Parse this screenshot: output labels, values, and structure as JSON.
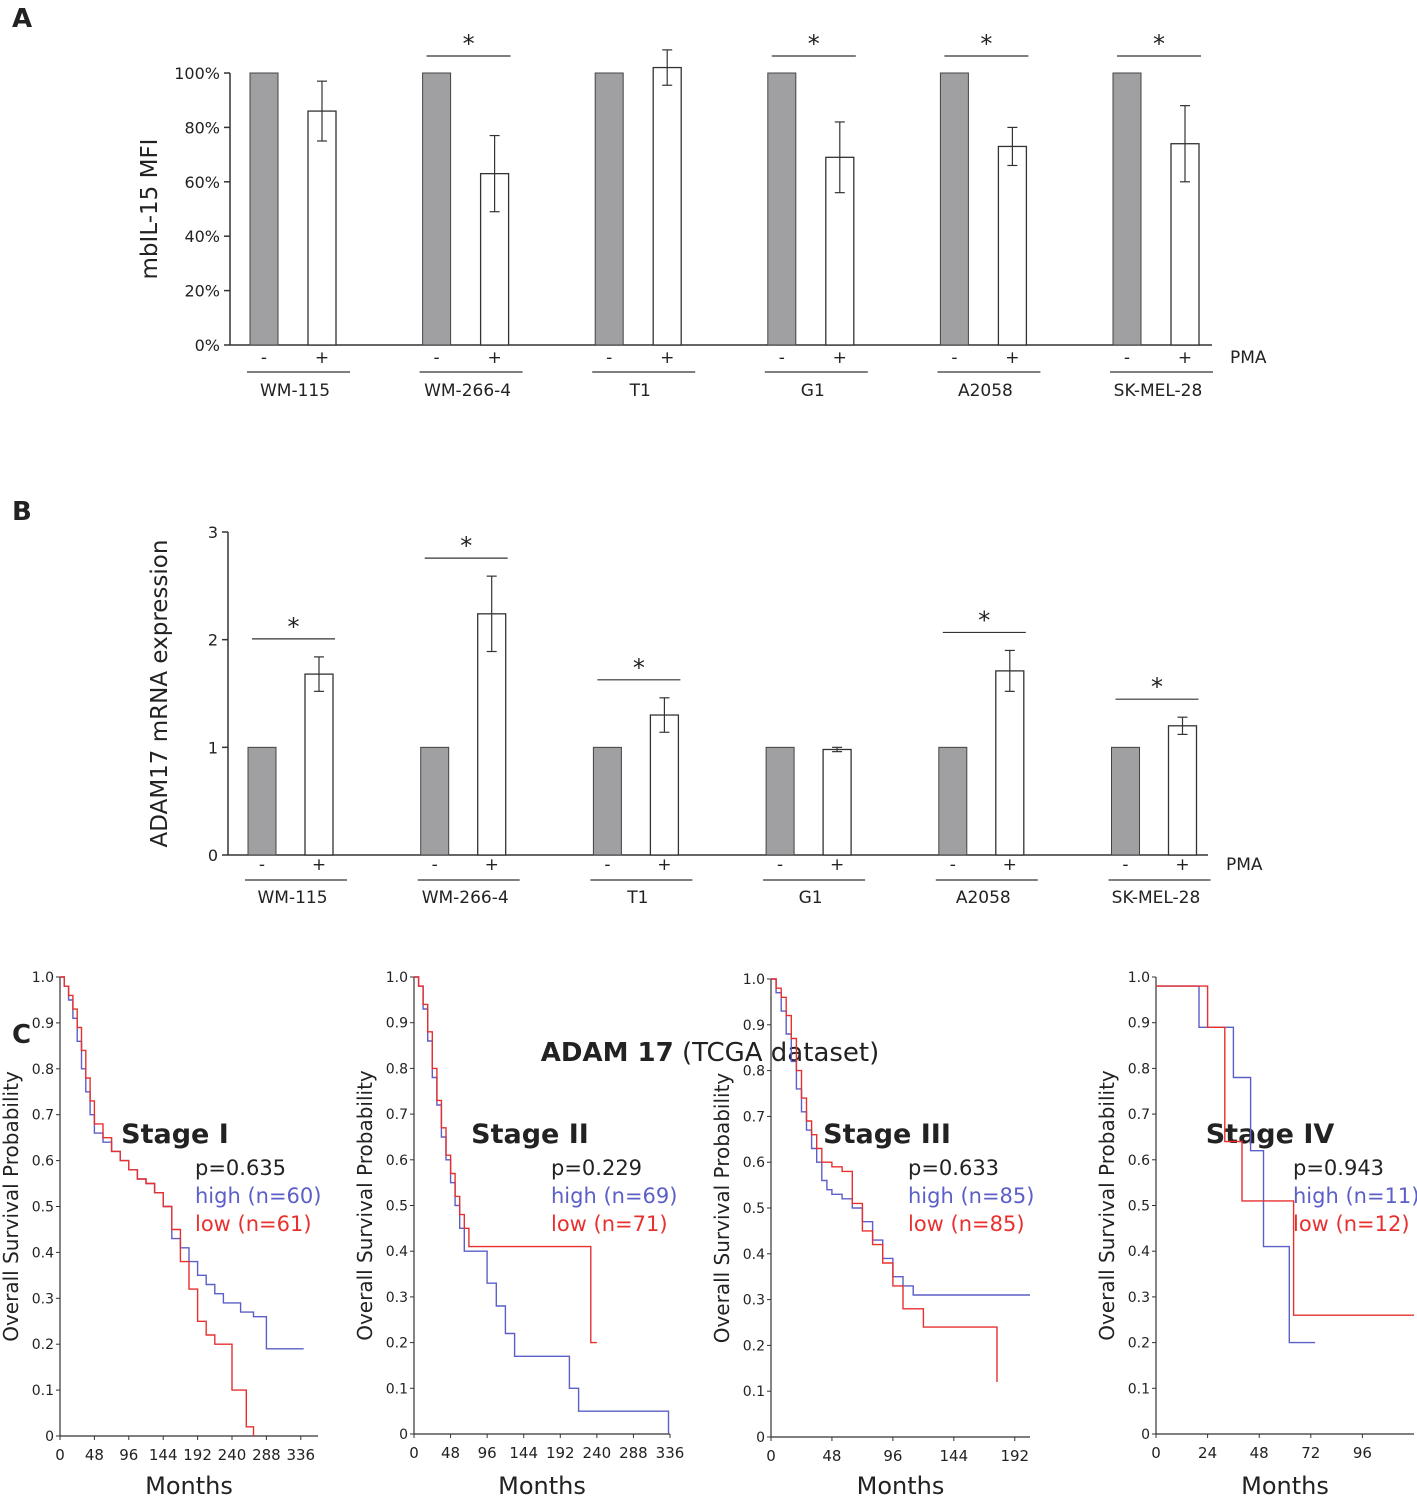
{
  "colors": {
    "ctrl_fill": "#a0a0a3",
    "pma_fill": "#ffffff",
    "axis": "#333333",
    "high": "#5b5fc7",
    "low": "#e8312f"
  },
  "panel_labels": {
    "a": "A",
    "b": "B",
    "c": "C"
  },
  "c_title": {
    "bold": "ADAM 17",
    "rest": " (TCGA dataset)"
  },
  "chart_data": [
    {
      "type": "bar",
      "panel": "A",
      "ylabel": "mbIL-15 MFI",
      "ylim": [
        0,
        100
      ],
      "yticks": [
        0,
        20,
        40,
        60,
        80,
        100
      ],
      "ytick_labels": [
        "0%",
        "20%",
        "40%",
        "60%",
        "80%",
        "100%"
      ],
      "treatment_label": "PMA",
      "treatment_signs": [
        "-",
        "+"
      ],
      "categories": [
        "WM-115",
        "WM-266-4",
        "T1",
        "G1",
        "A2058",
        "SK-MEL-28"
      ],
      "series": [
        {
          "name": "-",
          "values": [
            100,
            100,
            100,
            100,
            100,
            100
          ]
        },
        {
          "name": "+",
          "values": [
            86,
            63,
            102,
            69,
            73,
            74
          ],
          "err": [
            11,
            14,
            6.5,
            13,
            7,
            14
          ]
        }
      ],
      "significant": [
        false,
        true,
        false,
        true,
        true,
        true
      ],
      "sig_mark": "*"
    },
    {
      "type": "bar",
      "panel": "B",
      "ylabel": "ADAM17 mRNA expression",
      "ylim": [
        0,
        3
      ],
      "yticks": [
        0,
        1,
        2,
        3
      ],
      "ytick_labels": [
        "0",
        "1",
        "2",
        "3"
      ],
      "treatment_label": "PMA",
      "treatment_signs": [
        "-",
        "+"
      ],
      "categories": [
        "WM-115",
        "WM-266-4",
        "T1",
        "G1",
        "A2058",
        "SK-MEL-28"
      ],
      "series": [
        {
          "name": "-",
          "values": [
            1,
            1,
            1,
            1,
            1,
            1
          ]
        },
        {
          "name": "+",
          "values": [
            1.68,
            2.24,
            1.3,
            0.98,
            1.71,
            1.2
          ],
          "err": [
            0.16,
            0.35,
            0.16,
            0.02,
            0.19,
            0.08
          ]
        }
      ],
      "significant": [
        true,
        true,
        true,
        false,
        true,
        true
      ],
      "sig_mark": "*"
    },
    {
      "type": "line",
      "panel": "C",
      "title": "Stage I",
      "xlabel": "Months",
      "ylabel": "Overall Survival Probability",
      "xlim": [
        0,
        360
      ],
      "xticks": [
        0,
        48,
        96,
        144,
        192,
        240,
        288,
        336
      ],
      "ylim": [
        0,
        1
      ],
      "yticks": [
        0,
        0.1,
        0.2,
        0.3,
        0.4,
        0.5,
        0.6,
        0.7,
        0.8,
        0.9,
        1.0
      ],
      "ytick_labels": [
        "0",
        "0.1",
        "0.2",
        "0.3",
        "0.4",
        "0.5",
        "0.6",
        "0.7",
        "0.8",
        "0.9",
        "1.0"
      ],
      "pvalue": "p=0.635",
      "high_label": "high (n=60)",
      "low_label": "low  (n=61)",
      "series": [
        {
          "name": "high",
          "x": [
            0,
            6,
            12,
            18,
            24,
            30,
            36,
            42,
            48,
            60,
            72,
            84,
            96,
            108,
            120,
            132,
            144,
            156,
            168,
            180,
            192,
            204,
            216,
            228,
            252,
            270,
            288,
            300,
            320,
            340
          ],
          "y": [
            1,
            0.98,
            0.95,
            0.91,
            0.86,
            0.8,
            0.75,
            0.7,
            0.66,
            0.64,
            0.62,
            0.6,
            0.58,
            0.56,
            0.55,
            0.53,
            0.5,
            0.43,
            0.41,
            0.38,
            0.35,
            0.33,
            0.31,
            0.29,
            0.27,
            0.26,
            0.19,
            0.19,
            0.19,
            0.19
          ]
        },
        {
          "name": "low",
          "x": [
            0,
            6,
            12,
            18,
            24,
            30,
            36,
            42,
            48,
            60,
            72,
            84,
            96,
            108,
            120,
            132,
            144,
            156,
            168,
            180,
            192,
            204,
            216,
            228,
            240,
            250,
            260,
            270
          ],
          "y": [
            1,
            0.98,
            0.96,
            0.93,
            0.89,
            0.84,
            0.78,
            0.73,
            0.68,
            0.65,
            0.62,
            0.6,
            0.58,
            0.56,
            0.55,
            0.53,
            0.5,
            0.45,
            0.38,
            0.32,
            0.25,
            0.22,
            0.2,
            0.2,
            0.1,
            0.1,
            0.02,
            0
          ]
        }
      ]
    },
    {
      "type": "line",
      "panel": "C",
      "title": "Stage II",
      "xlabel": "Months",
      "ylabel": "Overall Survival Probability",
      "xlim": [
        0,
        336
      ],
      "xticks": [
        0,
        48,
        96,
        144,
        192,
        240,
        288,
        336
      ],
      "ylim": [
        0,
        1
      ],
      "yticks": [
        0,
        0.1,
        0.2,
        0.3,
        0.4,
        0.5,
        0.6,
        0.7,
        0.8,
        0.9,
        1.0
      ],
      "ytick_labels": [
        "0",
        "0.1",
        "0.2",
        "0.3",
        "0.4",
        "0.5",
        "0.6",
        "0.7",
        "0.8",
        "0.9",
        "1.0"
      ],
      "pvalue": "p=0.229",
      "high_label": "high (n=69)",
      "low_label": "low  (n=71)",
      "series": [
        {
          "name": "high",
          "x": [
            0,
            6,
            12,
            18,
            24,
            30,
            36,
            42,
            48,
            54,
            60,
            66,
            72,
            84,
            96,
            108,
            120,
            132,
            144,
            156,
            168,
            180,
            192,
            204,
            216,
            228,
            250,
            280,
            320,
            334
          ],
          "y": [
            1,
            0.98,
            0.93,
            0.86,
            0.78,
            0.72,
            0.65,
            0.6,
            0.55,
            0.5,
            0.45,
            0.4,
            0.4,
            0.4,
            0.33,
            0.28,
            0.22,
            0.17,
            0.17,
            0.17,
            0.17,
            0.17,
            0.17,
            0.1,
            0.05,
            0.05,
            0.05,
            0.05,
            0.05,
            0
          ]
        },
        {
          "name": "low",
          "x": [
            0,
            6,
            12,
            18,
            24,
            30,
            36,
            42,
            48,
            54,
            60,
            66,
            72,
            84,
            96,
            120,
            150,
            180,
            200,
            225,
            232,
            240
          ],
          "y": [
            1,
            0.98,
            0.94,
            0.88,
            0.8,
            0.73,
            0.67,
            0.61,
            0.57,
            0.52,
            0.48,
            0.45,
            0.41,
            0.41,
            0.41,
            0.41,
            0.41,
            0.41,
            0.41,
            0.41,
            0.2,
            0.2
          ]
        }
      ]
    },
    {
      "type": "line",
      "panel": "C",
      "title": "Stage III",
      "xlabel": "Months",
      "ylabel": "Overall Survival Probability",
      "xlim": [
        0,
        204
      ],
      "xticks": [
        0,
        48,
        96,
        144,
        192
      ],
      "ylim": [
        0,
        1
      ],
      "yticks": [
        0,
        0.1,
        0.2,
        0.3,
        0.4,
        0.5,
        0.6,
        0.7,
        0.8,
        0.9,
        1.0
      ],
      "ytick_labels": [
        "0",
        "0.1",
        "0.2",
        "0.3",
        "0.4",
        "0.5",
        "0.6",
        "0.7",
        "0.8",
        "0.9",
        "1.0"
      ],
      "pvalue": "p=0.633",
      "high_label": "high (n=85)",
      "low_label": "low  (n=85)",
      "series": [
        {
          "name": "high",
          "x": [
            0,
            4,
            8,
            12,
            16,
            20,
            24,
            28,
            32,
            36,
            40,
            44,
            48,
            56,
            64,
            72,
            80,
            88,
            96,
            104,
            112,
            120,
            140,
            160,
            180,
            204
          ],
          "y": [
            1,
            0.97,
            0.93,
            0.88,
            0.82,
            0.76,
            0.71,
            0.67,
            0.63,
            0.6,
            0.56,
            0.54,
            0.53,
            0.52,
            0.5,
            0.47,
            0.43,
            0.39,
            0.35,
            0.33,
            0.31,
            0.31,
            0.31,
            0.31,
            0.31,
            0.31
          ]
        },
        {
          "name": "low",
          "x": [
            0,
            4,
            8,
            12,
            16,
            20,
            24,
            28,
            32,
            36,
            40,
            48,
            56,
            64,
            72,
            80,
            88,
            96,
            104,
            112,
            120,
            140,
            160,
            175,
            178
          ],
          "y": [
            1,
            0.98,
            0.96,
            0.92,
            0.87,
            0.8,
            0.74,
            0.69,
            0.66,
            0.63,
            0.6,
            0.59,
            0.58,
            0.51,
            0.45,
            0.42,
            0.38,
            0.33,
            0.28,
            0.28,
            0.24,
            0.24,
            0.24,
            0.24,
            0.12
          ]
        }
      ]
    },
    {
      "type": "line",
      "panel": "C",
      "title": "Stage IV",
      "xlabel": "Months",
      "ylabel": "Overall Survival Probability",
      "xlim": [
        0,
        120
      ],
      "xticks": [
        0,
        24,
        48,
        72,
        96
      ],
      "ylim": [
        0,
        1
      ],
      "yticks": [
        0,
        0.1,
        0.2,
        0.3,
        0.4,
        0.5,
        0.6,
        0.7,
        0.8,
        0.9,
        1.0
      ],
      "ytick_labels": [
        "0",
        "0.1",
        "0.2",
        "0.3",
        "0.4",
        "0.5",
        "0.6",
        "0.7",
        "0.8",
        "0.9",
        "1.0"
      ],
      "pvalue": "p=0.943",
      "high_label": "high (n=11)",
      "low_label": "low  (n=12)",
      "series": [
        {
          "name": "high",
          "x": [
            0,
            12,
            20,
            28,
            36,
            40,
            44,
            48,
            50,
            54,
            62,
            74
          ],
          "y": [
            0.98,
            0.98,
            0.89,
            0.89,
            0.78,
            0.78,
            0.62,
            0.62,
            0.41,
            0.41,
            0.2,
            0.2
          ]
        },
        {
          "name": "low",
          "x": [
            0,
            12,
            24,
            32,
            40,
            48,
            56,
            64,
            90,
            120
          ],
          "y": [
            0.98,
            0.98,
            0.89,
            0.64,
            0.51,
            0.51,
            0.51,
            0.26,
            0.26,
            0.26
          ]
        }
      ]
    }
  ]
}
